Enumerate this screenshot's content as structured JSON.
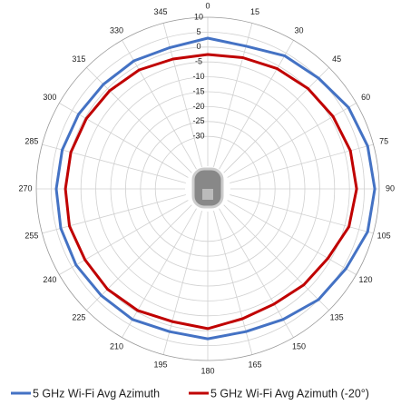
{
  "chart_data": {
    "type": "radar",
    "categories": [
      "0",
      "15",
      "30",
      "45",
      "60",
      "75",
      "90",
      "105",
      "120",
      "135",
      "150",
      "165",
      "180",
      "195",
      "210",
      "225",
      "240",
      "255",
      "270",
      "285",
      "300",
      "315",
      "330",
      "345"
    ],
    "series": [
      {
        "name": "5 GHz Wi-Fi Avg Azimuth",
        "color": "#4472c4",
        "values": [
          3,
          2,
          4,
          5,
          7,
          8,
          8.5,
          8,
          6,
          5,
          3,
          2,
          2.7,
          2,
          3,
          3,
          3.5,
          3.5,
          3.3,
          3,
          2.5,
          2,
          2,
          1.5
        ]
      },
      {
        "name": "5 GHz Wi-Fi Avg Azimuth (-20°)",
        "color": "#c00000",
        "values": [
          -2.5,
          -2,
          -1,
          0,
          1,
          2,
          2.4,
          1.5,
          -1,
          -2,
          -3,
          -2.5,
          -0.7,
          -1.5,
          -0.5,
          0,
          0,
          0.5,
          0.2,
          0,
          -0.5,
          -1,
          -1.5,
          -2.5
        ]
      }
    ],
    "ylim": [
      -40,
      10
    ],
    "yticks": [
      10,
      5,
      0,
      -5,
      -10,
      -15,
      -20,
      -25,
      -30
    ],
    "grid": true,
    "legend": "bottom"
  }
}
